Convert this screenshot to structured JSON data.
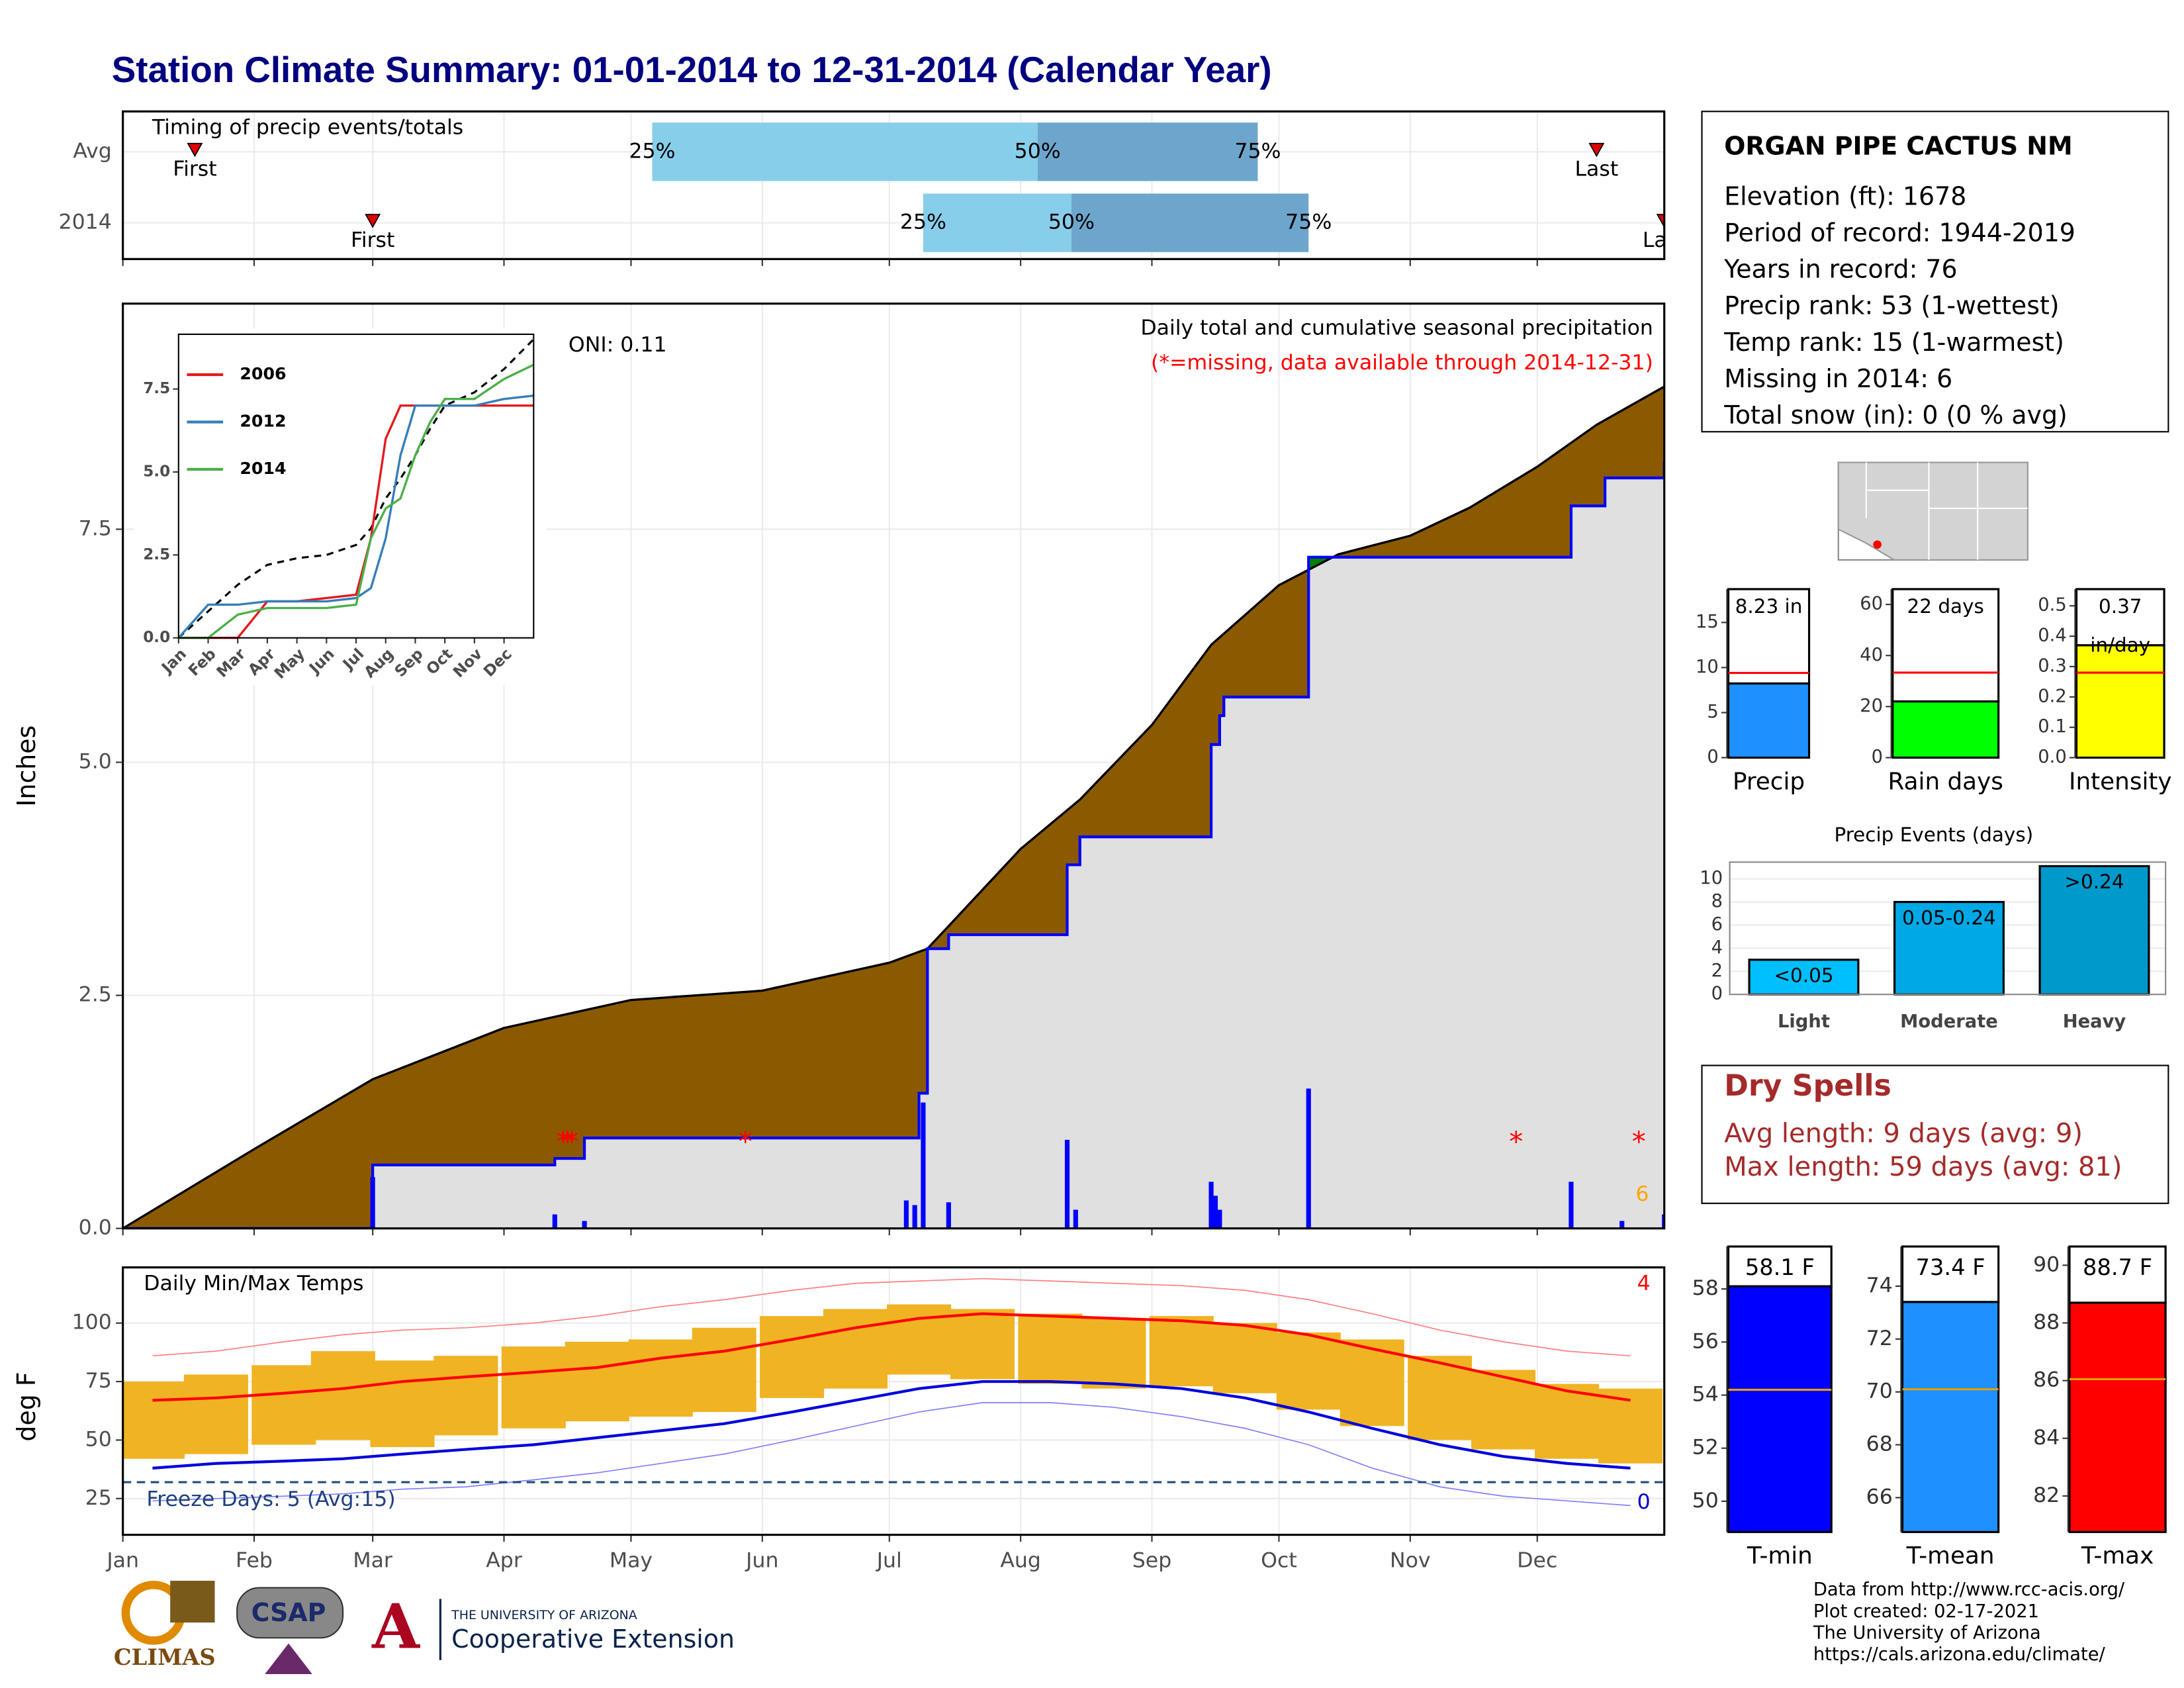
{
  "title": "Station Climate Summary: 01-01-2014 to 12-31-2014 (Calendar Year)",
  "chart_data": [
    {
      "type": "range",
      "title": "Timing of precip events/totals",
      "categories": [
        "Avg",
        "2014"
      ],
      "first": [
        18,
        60
      ],
      "q25": [
        126,
        190
      ],
      "q50": [
        217,
        225
      ],
      "q75": [
        269,
        281
      ],
      "last": [
        349,
        365
      ],
      "quantile_labels": [
        "25%",
        "50%",
        "75%"
      ],
      "first_label": "First",
      "last_label": "Last",
      "xlim": [
        1,
        365
      ],
      "colors": [
        "#87ceeb",
        "#6ca6cd"
      ],
      "marker_color": "#e00000"
    },
    {
      "type": "precip",
      "title": "Daily total and cumulative seasonal precipitation",
      "subtitle": "(*=missing, data available through 2014-12-31)",
      "annotation": "ONI: 0.11",
      "count_label": 6,
      "ylabel": "Inches",
      "xlim": [
        1,
        365
      ],
      "ylim": [
        0,
        9.92
      ],
      "yticks": [
        {
          "value": 0,
          "label": "0.0"
        },
        {
          "value": 2.5,
          "label": "2.5"
        },
        {
          "value": 5,
          "label": "5.0"
        },
        {
          "value": 7.5,
          "label": "7.5"
        }
      ],
      "average": {
        "x": [
          1,
          32,
          60,
          91,
          121,
          152,
          182,
          191,
          213,
          227,
          244,
          258,
          274,
          288,
          305,
          319,
          335,
          349,
          365
        ],
        "values": [
          0,
          0.85,
          1.6,
          2.15,
          2.45,
          2.55,
          2.85,
          3.0,
          4.07,
          4.6,
          5.4,
          6.26,
          6.9,
          7.23,
          7.43,
          7.73,
          8.17,
          8.62,
          9.03
        ]
      },
      "cumulative": {
        "x": [
          1,
          60,
          103,
          110,
          189,
          191,
          196,
          224,
          227,
          258,
          260,
          261,
          281,
          343,
          351,
          365
        ],
        "values": [
          0,
          0.68,
          0.75,
          0.97,
          1.45,
          3.0,
          3.15,
          3.9,
          4.2,
          5.19,
          5.5,
          5.7,
          7.2,
          7.75,
          8.05,
          8.23
        ]
      },
      "daily": {
        "x": [
          60,
          103,
          110,
          186,
          188,
          190,
          196,
          224,
          226,
          258,
          259,
          260,
          281,
          343,
          355,
          365
        ],
        "values": [
          0.55,
          0.15,
          0.08,
          0.3,
          0.25,
          1.35,
          0.28,
          0.95,
          0.2,
          0.5,
          0.35,
          0.2,
          1.5,
          0.5,
          0.08,
          0.15
        ]
      },
      "missing": {
        "x": [
          105,
          106,
          107,
          148,
          330,
          359
        ],
        "values": [
          0.97,
          0.97,
          0.97,
          0.97,
          0.97,
          0.97
        ]
      },
      "missing_symbol": "*",
      "deficit_color": "#8b5a00",
      "surplus_color": "#008000",
      "base_color": "#e0e0e0",
      "cumulative_color": "#0000ff",
      "daily_color": "#0000ff"
    },
    {
      "type": "inset_line",
      "x": [
        0,
        1,
        2,
        3,
        4,
        5,
        6,
        6.5,
        7,
        7.5,
        8,
        8.5,
        9,
        10,
        11,
        12
      ],
      "series": [
        {
          "name": "2006",
          "color": "#e41a1c",
          "values": [
            0,
            0,
            0,
            1.1,
            1.1,
            1.2,
            1.3,
            3.0,
            6.0,
            7.0,
            7.0,
            7.0,
            7.0,
            7.0,
            7.0,
            7.0
          ]
        },
        {
          "name": "2012",
          "color": "#377eb8",
          "values": [
            0,
            1.0,
            1.0,
            1.1,
            1.1,
            1.1,
            1.2,
            1.5,
            3.0,
            5.5,
            7.0,
            7.0,
            7.0,
            7.0,
            7.2,
            7.3
          ]
        },
        {
          "name": "2014",
          "color": "#4daf4a",
          "values": [
            0,
            0,
            0.7,
            0.9,
            0.9,
            0.9,
            1.0,
            3.0,
            3.9,
            4.2,
            5.5,
            6.5,
            7.2,
            7.2,
            7.8,
            8.23
          ]
        }
      ],
      "average": [
        0,
        0.8,
        1.6,
        2.2,
        2.4,
        2.5,
        2.8,
        3.3,
        4.2,
        4.8,
        5.5,
        6.3,
        7.0,
        7.4,
        8.1,
        9.0
      ],
      "xlim": [
        0,
        12
      ],
      "ylim": [
        0,
        9.15
      ],
      "xticks": [
        {
          "value": 0,
          "label": "Jan"
        },
        {
          "value": 1,
          "label": "Feb"
        },
        {
          "value": 2,
          "label": "Mar"
        },
        {
          "value": 3,
          "label": "Apr"
        },
        {
          "value": 4,
          "label": "May"
        },
        {
          "value": 5,
          "label": "Jun"
        },
        {
          "value": 6,
          "label": "Jul"
        },
        {
          "value": 7,
          "label": "Aug"
        },
        {
          "value": 8,
          "label": "Sep"
        },
        {
          "value": 9,
          "label": "Oct"
        },
        {
          "value": 10,
          "label": "Nov"
        },
        {
          "value": 11,
          "label": "Dec"
        }
      ],
      "yticks": [
        {
          "value": 0,
          "label": "0.0"
        },
        {
          "value": 2.5,
          "label": "2.5"
        },
        {
          "value": 5,
          "label": "5.0"
        },
        {
          "value": 7.5,
          "label": "7.5"
        }
      ]
    },
    {
      "type": "temps",
      "title": "Daily Min/Max Temps",
      "ylabel": "deg F",
      "x": [
        8,
        23,
        39,
        53,
        67,
        82,
        98,
        113,
        128,
        143,
        159,
        174,
        189,
        204,
        220,
        235,
        251,
        266,
        281,
        296,
        312,
        327,
        342,
        357
      ],
      "max": [
        75,
        78,
        82,
        88,
        84,
        86,
        90,
        92,
        93,
        98,
        103,
        106,
        108,
        106,
        104,
        102,
        103,
        100,
        96,
        93,
        86,
        80,
        74,
        72
      ],
      "min": [
        42,
        44,
        48,
        50,
        47,
        52,
        55,
        58,
        60,
        62,
        68,
        72,
        78,
        76,
        74,
        72,
        73,
        70,
        63,
        56,
        50,
        46,
        42,
        40
      ],
      "normal_max": [
        67,
        68,
        70,
        72,
        75,
        77,
        79,
        81,
        85,
        88,
        93,
        98,
        102,
        104,
        103,
        102,
        101,
        99,
        95,
        89,
        83,
        77,
        71,
        67
      ],
      "normal_min": [
        38,
        40,
        41,
        42,
        44,
        46,
        48,
        51,
        54,
        57,
        62,
        67,
        72,
        75,
        75,
        74,
        72,
        68,
        62,
        55,
        48,
        43,
        40,
        38
      ],
      "record_max": [
        86,
        88,
        92,
        95,
        97,
        98,
        100,
        103,
        107,
        110,
        114,
        117,
        118,
        119,
        118,
        117,
        116,
        114,
        110,
        104,
        97,
        92,
        88,
        86
      ],
      "record_min": [
        24,
        25,
        26,
        27,
        29,
        30,
        33,
        36,
        40,
        44,
        50,
        56,
        62,
        66,
        66,
        64,
        60,
        55,
        48,
        38,
        30,
        26,
        24,
        22
      ],
      "freeze_line": 32,
      "freeze_label": "Freeze Days: 5 (Avg:15)",
      "record_high_count": 4,
      "record_low_count": 0,
      "bar_color": "#f0b323",
      "xlim": [
        1,
        365
      ],
      "ylim": [
        9.5,
        123.8
      ],
      "yticks": [
        25,
        50,
        75,
        100
      ],
      "xticks": [
        {
          "value": 1,
          "label": "Jan"
        },
        {
          "value": 32,
          "label": "Feb"
        },
        {
          "value": 60,
          "label": "Mar"
        },
        {
          "value": 91,
          "label": "Apr"
        },
        {
          "value": 121,
          "label": "May"
        },
        {
          "value": 152,
          "label": "Jun"
        },
        {
          "value": 182,
          "label": "Jul"
        },
        {
          "value": 213,
          "label": "Aug"
        },
        {
          "value": 244,
          "label": "Sep"
        },
        {
          "value": 274,
          "label": "Oct"
        },
        {
          "value": 305,
          "label": "Nov"
        },
        {
          "value": 335,
          "label": "Dec"
        }
      ]
    },
    {
      "type": "summary_bar",
      "categories": [
        "Precip"
      ],
      "values": [
        8.23
      ],
      "value_labels": [
        [
          "8.23 in"
        ]
      ],
      "average": [
        9.4
      ],
      "color": "#1e90ff",
      "average_color": "#ff0000",
      "ylim": [
        0,
        18.7
      ],
      "yticks": [
        0,
        5,
        10,
        15
      ]
    },
    {
      "type": "summary_bar",
      "categories": [
        "Rain days"
      ],
      "values": [
        22
      ],
      "value_labels": [
        [
          "22 days"
        ]
      ],
      "average": [
        33.3
      ],
      "color": "#00ff00",
      "average_color": "#ff0000",
      "ylim": [
        0,
        66
      ],
      "yticks": [
        0,
        20,
        40,
        60
      ]
    },
    {
      "type": "summary_bar",
      "categories": [
        "Intensity"
      ],
      "values": [
        0.37
      ],
      "value_labels": [
        [
          "0.37",
          "in/day"
        ]
      ],
      "average": [
        0.28
      ],
      "color": "#ffff00",
      "average_color": "#ff0000",
      "ylim": [
        0,
        0.555
      ],
      "yticks": [
        {
          "value": 0,
          "label": "0.0"
        },
        {
          "value": 0.1,
          "label": "0.1"
        },
        {
          "value": 0.2,
          "label": "0.2"
        },
        {
          "value": 0.3,
          "label": "0.3"
        },
        {
          "value": 0.4,
          "label": "0.4"
        },
        {
          "value": 0.5,
          "label": "0.5"
        }
      ]
    },
    {
      "type": "events_bar",
      "title": "Precip Events (days)",
      "categories": [
        "Light",
        "Moderate",
        "Heavy"
      ],
      "values": [
        3,
        8,
        11.1
      ],
      "bar_labels": [
        "<0.05",
        "0.05-0.24",
        ">0.24"
      ],
      "colors": [
        "#00bfff",
        "#00a9e6",
        "#0099cc"
      ],
      "ylim": [
        0,
        11.45
      ],
      "yticks": [
        0,
        2,
        4,
        6,
        8,
        10
      ]
    },
    {
      "type": "summary_bar",
      "categories": [
        "T-min"
      ],
      "values": [
        58.1
      ],
      "value_labels": [
        [
          "58.1 F"
        ]
      ],
      "average": [
        54.2
      ],
      "color": "#0000ff",
      "average_color": "#e69f00",
      "ylim": [
        48.84,
        59.6
      ],
      "yticks": [
        50,
        52,
        54,
        56,
        58
      ]
    },
    {
      "type": "summary_bar",
      "categories": [
        "T-mean"
      ],
      "values": [
        73.4
      ],
      "value_labels": [
        [
          "73.4 F"
        ]
      ],
      "average": [
        70.1
      ],
      "color": "#1e90ff",
      "average_color": "#e69f00",
      "ylim": [
        64.7,
        75.5
      ],
      "yticks": [
        66,
        68,
        70,
        72,
        74
      ]
    },
    {
      "type": "summary_bar",
      "categories": [
        "T-max"
      ],
      "values": [
        88.7
      ],
      "value_labels": [
        [
          "88.7 F"
        ]
      ],
      "average": [
        86.05
      ],
      "color": "#ff0000",
      "average_color": "#e69f00",
      "ylim": [
        80.75,
        90.65
      ],
      "yticks": [
        82,
        84,
        86,
        88,
        90
      ]
    }
  ],
  "station": {
    "name": "ORGAN PIPE CACTUS NM",
    "lines": [
      "Elevation (ft): 1678",
      "Period of record: 1944-2019",
      "Years in record: 76",
      "Precip rank: 53 (1-wettest)",
      "Temp rank: 15 (1-warmest)",
      "Missing in 2014: 6",
      "Total snow (in): 0 (0 % avg)"
    ]
  },
  "dry_spells": {
    "title": "Dry Spells",
    "lines": [
      "Avg length: 9 days (avg: 9)",
      "Max length: 59 days (avg: 81)"
    ]
  },
  "credits": [
    "Data from http://www.rcc-acis.org/",
    "Plot created: 02-17-2021",
    "The University of Arizona",
    "https://cals.arizona.edu/climate/"
  ],
  "logos": {
    "climas": "CLIMAS",
    "csap": "CSAP",
    "university": "THE UNIVERSITY OF ARIZONA",
    "extension": "Cooperative Extension"
  }
}
